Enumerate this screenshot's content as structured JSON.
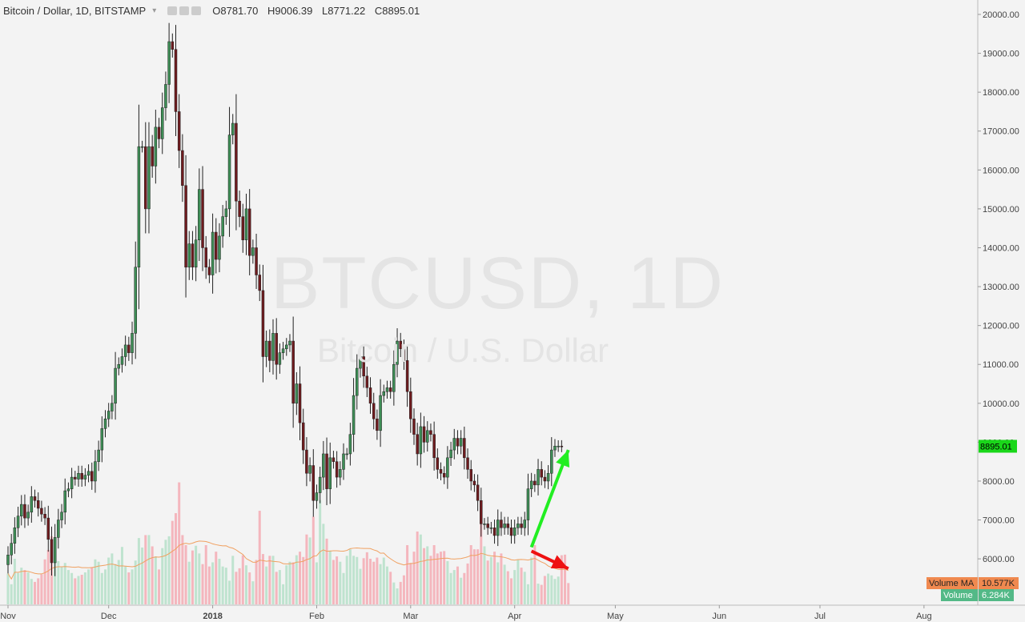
{
  "header": {
    "title": "Bitcoin / Dollar, 1D, BITSTAMP",
    "open_label": "O",
    "open": "8781.70",
    "high_label": "H",
    "high": "9006.39",
    "low_label": "L",
    "low": "8771.22",
    "close_label": "C",
    "close": "8895.01"
  },
  "watermark": {
    "symbol": "BTCUSD, 1D",
    "description": "Bitcoin / U.S. Dollar"
  },
  "colors": {
    "up": "#3e8e56",
    "down": "#6e1b1e",
    "vol_up": "#bfe3cf",
    "vol_down": "#f4b6bd",
    "ma": "#f0a060",
    "price_tag": "#1ad71a",
    "vol_ma_tag": "#f0894f",
    "vol_tag": "#53b987",
    "arrow_up": "#22ee22",
    "arrow_down": "#ee1111"
  },
  "price_tag": "8895.01",
  "volume_ma_label": "Volume MA",
  "volume_ma_value": "10.577K",
  "volume_label": "Volume",
  "volume_value": "6.284K",
  "chart_data": {
    "type": "candlestick",
    "ylim": [
      5000,
      20400
    ],
    "y_ticks": [
      "20000.00",
      "19000.00",
      "18000.00",
      "17000.00",
      "16000.00",
      "15000.00",
      "14000.00",
      "13000.00",
      "12000.00",
      "11000.00",
      "10000.00",
      "9000.00",
      "8000.00",
      "7000.00",
      "6000.00"
    ],
    "x_ticks": [
      "Nov",
      "Dec",
      "2018",
      "Feb",
      "Mar",
      "Apr",
      "May",
      "Jun",
      "Jul",
      "Aug"
    ],
    "x_tick_days": [
      0,
      30,
      61,
      92,
      120,
      151,
      181,
      212,
      242,
      273
    ],
    "closes": [
      6100,
      6400,
      6800,
      7100,
      7400,
      7050,
      7200,
      7600,
      7500,
      7300,
      7150,
      7050,
      6500,
      5900,
      6550,
      7000,
      7200,
      7750,
      7800,
      8100,
      8050,
      8200,
      8050,
      8150,
      8250,
      8000,
      8500,
      8800,
      9350,
      9600,
      9800,
      10000,
      10900,
      11000,
      11200,
      11500,
      11300,
      11800,
      13500,
      16600,
      16600,
      15000,
      16600,
      16100,
      17100,
      16800,
      17600,
      18200,
      19300,
      19100,
      17500,
      16500,
      15600,
      13500,
      14100,
      13500,
      14200,
      15500,
      14000,
      13500,
      13300,
      14400,
      13700,
      14300,
      14800,
      15000,
      16900,
      17200,
      15200,
      14800,
      14200,
      15000,
      13800,
      14000,
      13300,
      12900,
      11200,
      11600,
      11100,
      11800,
      11000,
      11300,
      11400,
      11500,
      11600,
      10000,
      10500,
      9500,
      8800,
      8200,
      8400,
      7500,
      7700,
      8100,
      8700,
      7800,
      8600,
      8500,
      8100,
      8300,
      8700,
      8700,
      9200,
      10200,
      10900,
      11200,
      10700,
      10400,
      10000,
      9600,
      9300,
      10200,
      10300,
      10400,
      10300,
      11000,
      11600,
      11400,
      11100,
      10300,
      9600,
      9200,
      8700,
      9400,
      9000,
      9300,
      9200,
      8600,
      8300,
      8200,
      8100,
      8600,
      8800,
      9100,
      8900,
      9100,
      8600,
      8300,
      8000,
      7900,
      7500,
      6900,
      6900,
      6800,
      6800,
      6600,
      7000,
      6800,
      6900,
      6800,
      6600,
      6800,
      6900,
      6800,
      7000,
      7800,
      8000,
      7900,
      8300,
      8100,
      8000,
      8200,
      8800,
      8900,
      8900,
      8895
    ],
    "volumes": [
      5.2,
      3.4,
      7.7,
      5.3,
      6.2,
      5.8,
      5.4,
      4.3,
      3.8,
      4.4,
      5.1,
      7.6,
      9.2,
      11.5,
      9.4,
      7.3,
      6.3,
      7.0,
      5.8,
      5.3,
      4.4,
      4.8,
      5.0,
      5.4,
      5.9,
      6.3,
      7.6,
      7.2,
      5.3,
      5.9,
      7.9,
      8.6,
      6.8,
      7.5,
      9.7,
      6.4,
      5.4,
      5.9,
      7.4,
      11.2,
      9.6,
      11.7,
      11.7,
      9.8,
      8.1,
      5.9,
      9.5,
      10.9,
      11.5,
      14.1,
      15.4,
      20.6,
      11.7,
      10.0,
      7.2,
      9.1,
      9.9,
      8.6,
      6.8,
      10.0,
      6.4,
      7.1,
      8.9,
      7.7,
      6.4,
      6.2,
      4.0,
      8.2,
      5.5,
      6.1,
      8.3,
      6.6,
      5.4,
      3.9,
      7.5,
      15.8,
      8.5,
      6.4,
      8.2,
      8.2,
      5.5,
      5.8,
      3.4,
      6.6,
      7.2,
      7.1,
      8.3,
      8.9,
      8.0,
      11.8,
      11.3,
      14.8,
      7.1,
      17.6,
      13.6,
      11.1,
      9.1,
      7.5,
      8.1,
      7.2,
      5.3,
      8.2,
      9.3,
      8.2,
      8.0,
      6.0,
      7.8,
      8.8,
      7.7,
      7.2,
      7.9,
      6.8,
      7.9,
      6.4,
      5.5,
      3.7,
      2.7,
      3.8,
      4.9,
      10.0,
      7.0,
      8.9,
      12.3,
      11.8,
      9.5,
      9.8,
      8.2,
      10.0,
      8.6,
      8.9,
      9.0,
      7.3,
      5.3,
      5.8,
      6.4,
      4.5,
      5.3,
      6.9,
      10.0,
      9.3,
      9.3,
      14.1,
      9.8,
      7.4,
      8.0,
      8.9,
      7.1,
      8.6,
      6.7,
      5.6,
      4.4,
      5.8,
      7.5,
      6.2,
      5.5,
      3.4,
      7.9,
      10.0,
      3.5,
      3.3,
      4.8,
      5.2,
      4.9,
      4.3,
      4.7,
      8.3,
      8.4,
      3.6
    ],
    "volume_ma_window": 20,
    "annotations": [
      {
        "type": "arrow",
        "color": "green",
        "from": [
          156,
          6300
        ],
        "to": [
          167,
          8800
        ]
      },
      {
        "type": "arrow",
        "color": "red",
        "from": [
          156,
          6200
        ],
        "to": [
          167,
          5750
        ]
      }
    ]
  }
}
